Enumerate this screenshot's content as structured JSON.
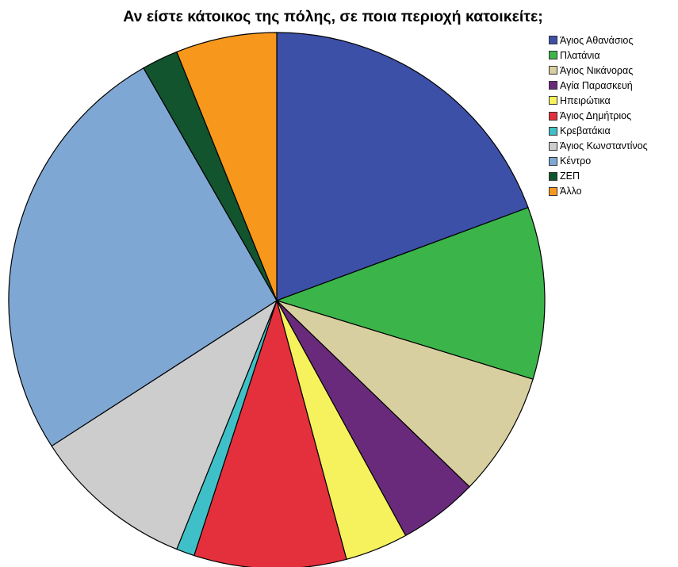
{
  "chart_data": {
    "type": "pie",
    "title": "Αν είστε κάτοικος της πόλης, σε ποια περιοχή κατοικείτε;",
    "legend_position": "top-right",
    "series": [
      {
        "name": "Άγιος Αθανάσιος",
        "value": 19.4,
        "color": "#3c50a8"
      },
      {
        "name": "Πλατάνια",
        "value": 10.4,
        "color": "#3bb54a"
      },
      {
        "name": "Άγιος Νικάνορας",
        "value": 7.5,
        "color": "#d8cfa0"
      },
      {
        "name": "Αγία Παρασκευή",
        "value": 4.8,
        "color": "#6a2a7c"
      },
      {
        "name": "Ηπειρώτικα",
        "value": 3.8,
        "color": "#f6f25e"
      },
      {
        "name": "Άγιος Δημήτριος",
        "value": 9.2,
        "color": "#e4303c"
      },
      {
        "name": "Κρεβατάκια",
        "value": 1.1,
        "color": "#3fc0c8"
      },
      {
        "name": "Άγιος Κωνσταντίνος",
        "value": 9.8,
        "color": "#cdcdcd"
      },
      {
        "name": "Κέντρο",
        "value": 25.9,
        "color": "#7fa7d4"
      },
      {
        "name": "ΖΕΠ",
        "value": 2.2,
        "color": "#12542e"
      },
      {
        "name": "Άλλο",
        "value": 6.1,
        "color": "#f7981d"
      }
    ]
  }
}
